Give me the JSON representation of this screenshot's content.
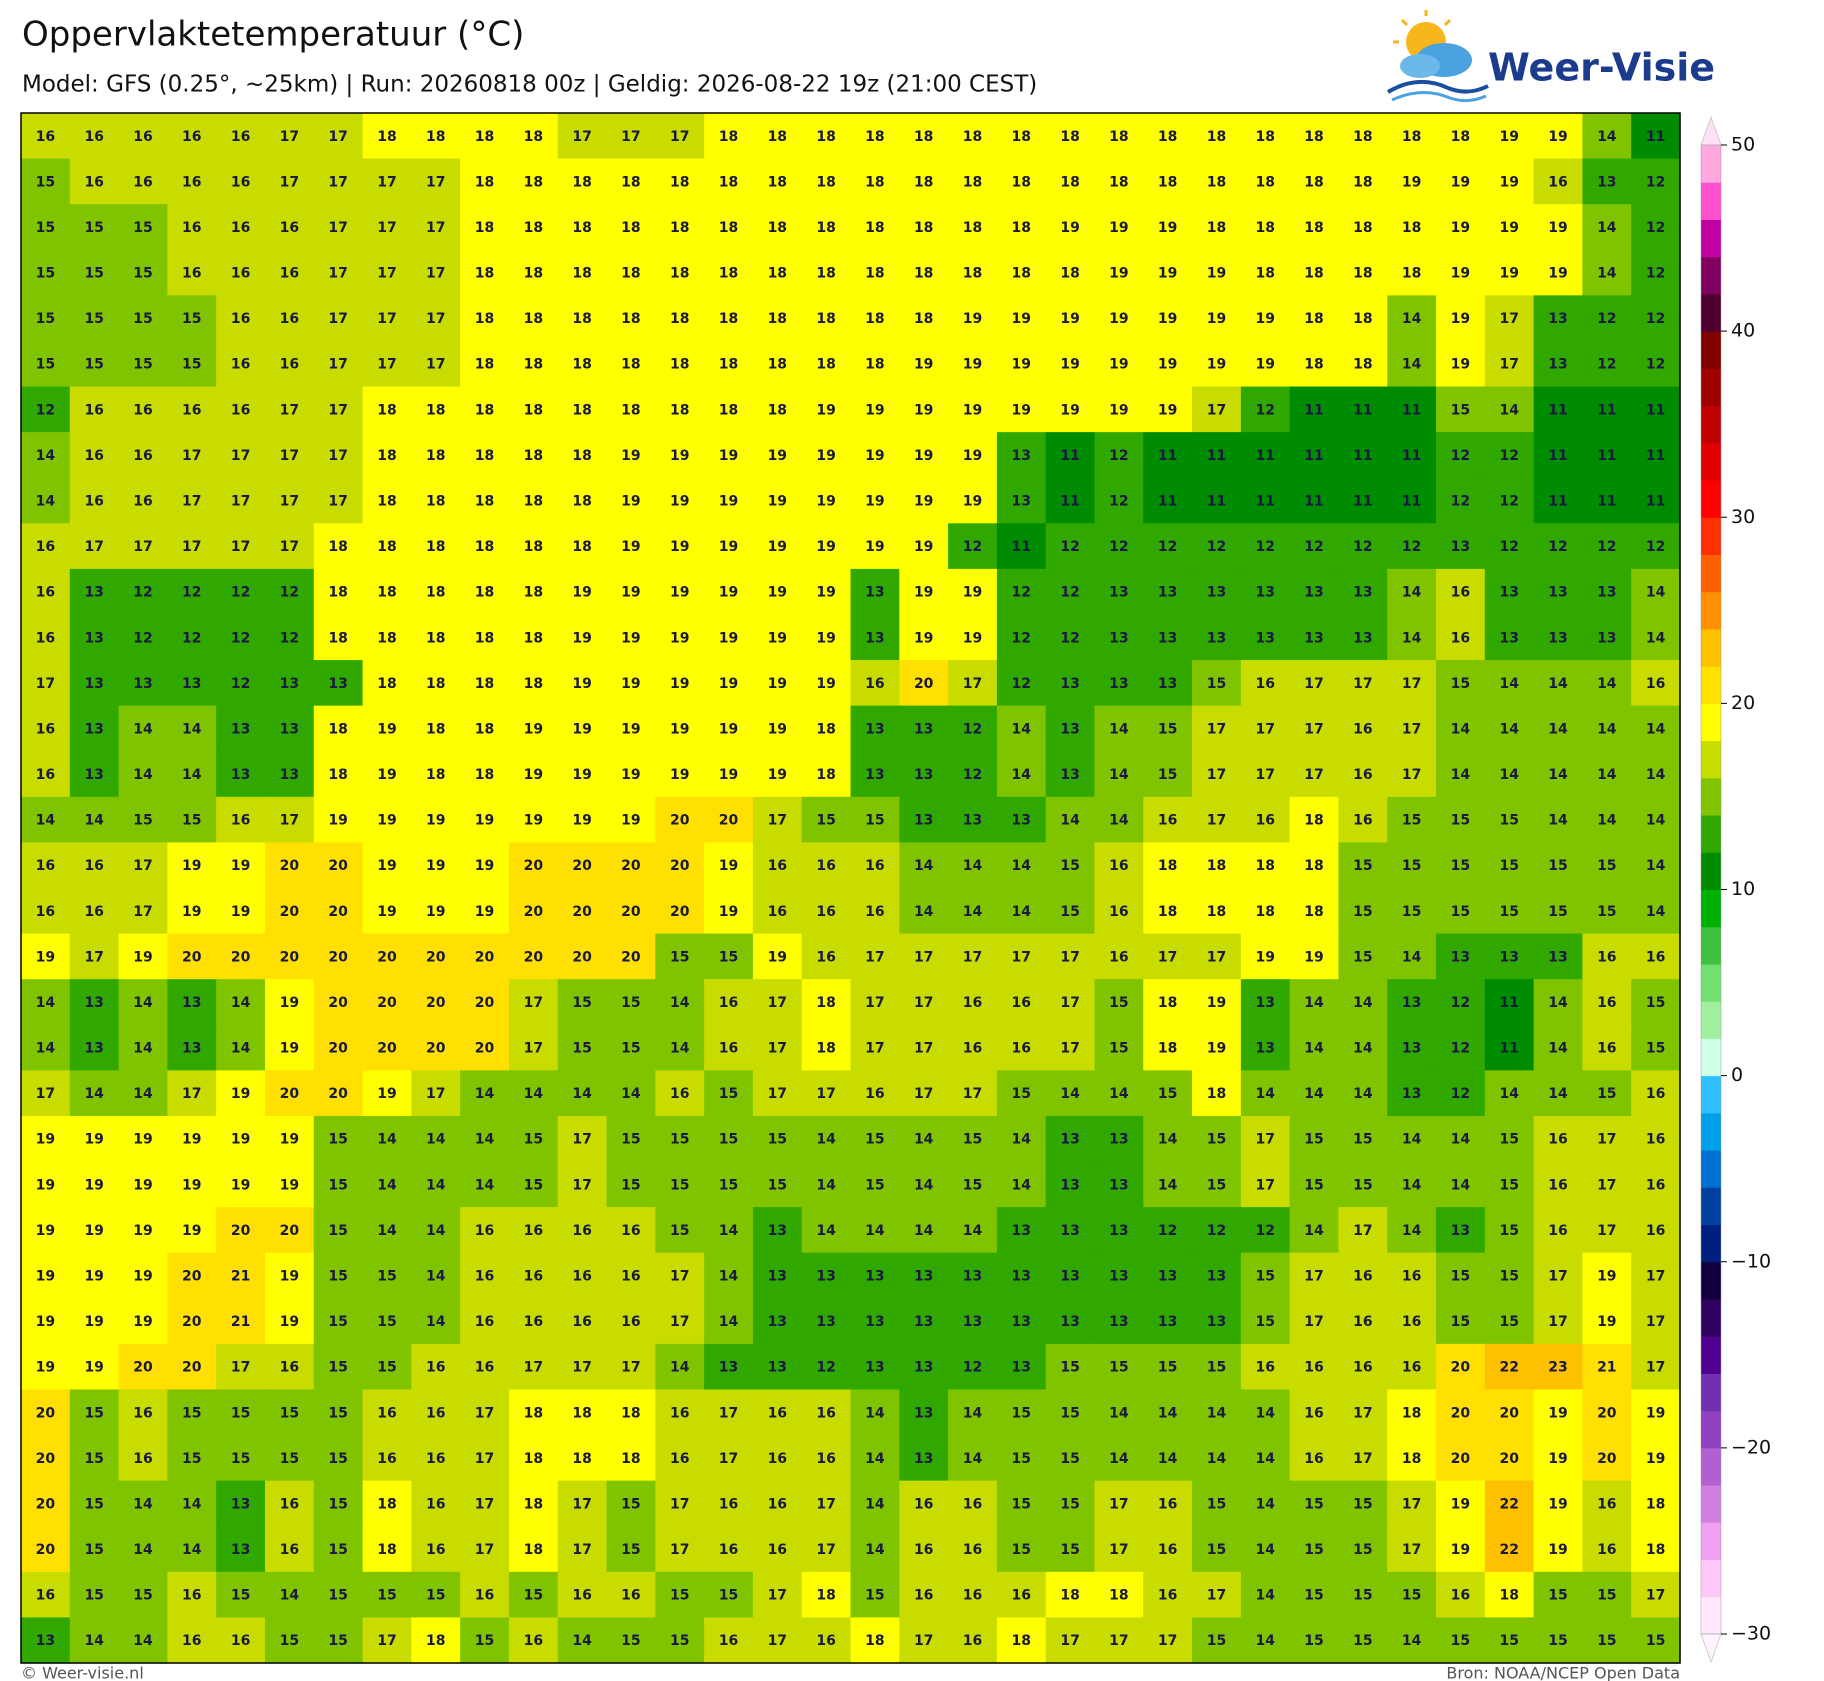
{
  "header": {
    "title": "Oppervlaktetemperatuur (°C)",
    "subtitle": "Model: GFS (0.25°, ~25km)  |  Run: 20260818 00z  |  Geldig: 2026-08-22 19z (21:00 CEST)",
    "logo": "Weer-Visie"
  },
  "map": {
    "values": [
      [
        16,
        16,
        16,
        16,
        16,
        17,
        17,
        18,
        18,
        18,
        18,
        17,
        17,
        17,
        18,
        18,
        18,
        18,
        18,
        18,
        18,
        18,
        18,
        18,
        18,
        18,
        18,
        18,
        18,
        18,
        19,
        19,
        14,
        11
      ],
      [
        15,
        16,
        16,
        16,
        16,
        17,
        17,
        17,
        17,
        18,
        18,
        18,
        18,
        18,
        18,
        18,
        18,
        18,
        18,
        18,
        18,
        18,
        18,
        18,
        18,
        18,
        18,
        18,
        19,
        19,
        19,
        16,
        13,
        12
      ],
      [
        15,
        15,
        15,
        16,
        16,
        16,
        17,
        17,
        17,
        18,
        18,
        18,
        18,
        18,
        18,
        18,
        18,
        18,
        18,
        18,
        18,
        19,
        19,
        19,
        18,
        18,
        18,
        18,
        18,
        19,
        19,
        19,
        14,
        12
      ],
      [
        15,
        15,
        15,
        16,
        16,
        16,
        17,
        17,
        17,
        18,
        18,
        18,
        18,
        18,
        18,
        18,
        18,
        18,
        18,
        18,
        18,
        18,
        19,
        19,
        19,
        18,
        18,
        18,
        18,
        19,
        19,
        19,
        14,
        12
      ],
      [
        15,
        15,
        15,
        15,
        16,
        16,
        17,
        17,
        17,
        18,
        18,
        18,
        18,
        18,
        18,
        18,
        18,
        18,
        18,
        19,
        19,
        19,
        19,
        19,
        19,
        19,
        18,
        18,
        14,
        19,
        17,
        13,
        12,
        12
      ],
      [
        15,
        15,
        15,
        15,
        16,
        16,
        17,
        17,
        17,
        18,
        18,
        18,
        18,
        18,
        18,
        18,
        18,
        18,
        19,
        19,
        19,
        19,
        19,
        19,
        19,
        19,
        18,
        18,
        14,
        19,
        17,
        13,
        12,
        12
      ],
      [
        12,
        16,
        16,
        16,
        16,
        17,
        17,
        18,
        18,
        18,
        18,
        18,
        18,
        18,
        18,
        18,
        19,
        19,
        19,
        19,
        19,
        19,
        19,
        19,
        17,
        12,
        11,
        11,
        11,
        15,
        14,
        11,
        11,
        11
      ],
      [
        14,
        16,
        16,
        17,
        17,
        17,
        17,
        18,
        18,
        18,
        18,
        18,
        19,
        19,
        19,
        19,
        19,
        19,
        19,
        19,
        13,
        11,
        12,
        11,
        11,
        11,
        11,
        11,
        11,
        12,
        12,
        11,
        11,
        11
      ],
      [
        14,
        16,
        16,
        17,
        17,
        17,
        17,
        18,
        18,
        18,
        18,
        18,
        19,
        19,
        19,
        19,
        19,
        19,
        19,
        19,
        13,
        11,
        12,
        11,
        11,
        11,
        11,
        11,
        11,
        12,
        12,
        11,
        11,
        11
      ],
      [
        16,
        17,
        17,
        17,
        17,
        17,
        18,
        18,
        18,
        18,
        18,
        18,
        19,
        19,
        19,
        19,
        19,
        19,
        19,
        12,
        11,
        12,
        12,
        12,
        12,
        12,
        12,
        12,
        12,
        13,
        12,
        12,
        12,
        12
      ],
      [
        16,
        13,
        12,
        12,
        12,
        12,
        18,
        18,
        18,
        18,
        18,
        19,
        19,
        19,
        19,
        19,
        19,
        13,
        19,
        19,
        12,
        12,
        13,
        13,
        13,
        13,
        13,
        13,
        14,
        16,
        13,
        13,
        13,
        14
      ],
      [
        16,
        13,
        12,
        12,
        12,
        12,
        18,
        18,
        18,
        18,
        18,
        19,
        19,
        19,
        19,
        19,
        19,
        13,
        19,
        19,
        12,
        12,
        13,
        13,
        13,
        13,
        13,
        13,
        14,
        16,
        13,
        13,
        13,
        14
      ],
      [
        17,
        13,
        13,
        13,
        12,
        13,
        13,
        18,
        18,
        18,
        18,
        19,
        19,
        19,
        19,
        19,
        19,
        16,
        20,
        17,
        12,
        13,
        13,
        13,
        15,
        16,
        17,
        17,
        17,
        15,
        14,
        14,
        14,
        16
      ],
      [
        16,
        13,
        14,
        14,
        13,
        13,
        18,
        19,
        18,
        18,
        19,
        19,
        19,
        19,
        19,
        19,
        18,
        13,
        13,
        12,
        14,
        13,
        14,
        15,
        17,
        17,
        17,
        16,
        17,
        14,
        14,
        14,
        14,
        14
      ],
      [
        16,
        13,
        14,
        14,
        13,
        13,
        18,
        19,
        18,
        18,
        19,
        19,
        19,
        19,
        19,
        19,
        18,
        13,
        13,
        12,
        14,
        13,
        14,
        15,
        17,
        17,
        17,
        16,
        17,
        14,
        14,
        14,
        14,
        14
      ],
      [
        14,
        14,
        15,
        15,
        16,
        17,
        19,
        19,
        19,
        19,
        19,
        19,
        19,
        20,
        20,
        17,
        15,
        15,
        13,
        13,
        13,
        14,
        14,
        16,
        17,
        16,
        18,
        16,
        15,
        15,
        15,
        14,
        14,
        14
      ],
      [
        16,
        16,
        17,
        19,
        19,
        20,
        20,
        19,
        19,
        19,
        20,
        20,
        20,
        20,
        19,
        16,
        16,
        16,
        14,
        14,
        14,
        15,
        16,
        18,
        18,
        18,
        18,
        15,
        15,
        15,
        15,
        15,
        15,
        14
      ],
      [
        16,
        16,
        17,
        19,
        19,
        20,
        20,
        19,
        19,
        19,
        20,
        20,
        20,
        20,
        19,
        16,
        16,
        16,
        14,
        14,
        14,
        15,
        16,
        18,
        18,
        18,
        18,
        15,
        15,
        15,
        15,
        15,
        15,
        14
      ],
      [
        19,
        17,
        19,
        20,
        20,
        20,
        20,
        20,
        20,
        20,
        20,
        20,
        20,
        15,
        15,
        19,
        16,
        17,
        17,
        17,
        17,
        17,
        16,
        17,
        17,
        19,
        19,
        15,
        14,
        13,
        13,
        13,
        16,
        16
      ],
      [
        14,
        13,
        14,
        13,
        14,
        19,
        20,
        20,
        20,
        20,
        17,
        15,
        15,
        14,
        16,
        17,
        18,
        17,
        17,
        16,
        16,
        17,
        15,
        18,
        19,
        13,
        14,
        14,
        13,
        12,
        11,
        14,
        16,
        15
      ],
      [
        14,
        13,
        14,
        13,
        14,
        19,
        20,
        20,
        20,
        20,
        17,
        15,
        15,
        14,
        16,
        17,
        18,
        17,
        17,
        16,
        16,
        17,
        15,
        18,
        19,
        13,
        14,
        14,
        13,
        12,
        11,
        14,
        16,
        15
      ],
      [
        17,
        14,
        14,
        17,
        19,
        20,
        20,
        19,
        17,
        14,
        14,
        14,
        14,
        16,
        15,
        17,
        17,
        16,
        17,
        17,
        15,
        14,
        14,
        15,
        18,
        14,
        14,
        14,
        13,
        12,
        14,
        14,
        15,
        16
      ],
      [
        19,
        19,
        19,
        19,
        19,
        19,
        15,
        14,
        14,
        14,
        15,
        17,
        15,
        15,
        15,
        15,
        14,
        15,
        14,
        15,
        14,
        13,
        13,
        14,
        15,
        17,
        15,
        15,
        14,
        14,
        15,
        16,
        17,
        16
      ],
      [
        19,
        19,
        19,
        19,
        19,
        19,
        15,
        14,
        14,
        14,
        15,
        17,
        15,
        15,
        15,
        15,
        14,
        15,
        14,
        15,
        14,
        13,
        13,
        14,
        15,
        17,
        15,
        15,
        14,
        14,
        15,
        16,
        17,
        16
      ],
      [
        19,
        19,
        19,
        19,
        20,
        20,
        15,
        14,
        14,
        16,
        16,
        16,
        16,
        15,
        14,
        13,
        14,
        14,
        14,
        14,
        13,
        13,
        13,
        12,
        12,
        12,
        14,
        17,
        14,
        13,
        15,
        16,
        17,
        16
      ],
      [
        19,
        19,
        19,
        20,
        21,
        19,
        15,
        15,
        14,
        16,
        16,
        16,
        16,
        17,
        14,
        13,
        13,
        13,
        13,
        13,
        13,
        13,
        13,
        13,
        13,
        15,
        17,
        16,
        16,
        15,
        15,
        17,
        19,
        17
      ],
      [
        19,
        19,
        19,
        20,
        21,
        19,
        15,
        15,
        14,
        16,
        16,
        16,
        16,
        17,
        14,
        13,
        13,
        13,
        13,
        13,
        13,
        13,
        13,
        13,
        13,
        15,
        17,
        16,
        16,
        15,
        15,
        17,
        19,
        17
      ],
      [
        19,
        19,
        20,
        20,
        17,
        16,
        15,
        15,
        16,
        16,
        17,
        17,
        17,
        14,
        13,
        13,
        12,
        13,
        13,
        12,
        13,
        15,
        15,
        15,
        15,
        16,
        16,
        16,
        16,
        20,
        22,
        23,
        21,
        17
      ],
      [
        20,
        15,
        16,
        15,
        15,
        15,
        15,
        16,
        16,
        17,
        18,
        18,
        18,
        16,
        17,
        16,
        16,
        14,
        13,
        14,
        15,
        15,
        14,
        14,
        14,
        14,
        16,
        17,
        18,
        20,
        20,
        19,
        20,
        19
      ],
      [
        20,
        15,
        16,
        15,
        15,
        15,
        15,
        16,
        16,
        17,
        18,
        18,
        18,
        16,
        17,
        16,
        16,
        14,
        13,
        14,
        15,
        15,
        14,
        14,
        14,
        14,
        16,
        17,
        18,
        20,
        20,
        19,
        20,
        19
      ],
      [
        20,
        15,
        14,
        14,
        13,
        16,
        15,
        18,
        16,
        17,
        18,
        17,
        15,
        17,
        16,
        16,
        17,
        14,
        16,
        16,
        15,
        15,
        17,
        16,
        15,
        14,
        15,
        15,
        17,
        19,
        22,
        19,
        16,
        18
      ],
      [
        20,
        15,
        14,
        14,
        13,
        16,
        15,
        18,
        16,
        17,
        18,
        17,
        15,
        17,
        16,
        16,
        17,
        14,
        16,
        16,
        15,
        15,
        17,
        16,
        15,
        14,
        15,
        15,
        17,
        19,
        22,
        19,
        16,
        18
      ],
      [
        16,
        15,
        15,
        16,
        15,
        14,
        15,
        15,
        15,
        16,
        15,
        16,
        16,
        15,
        15,
        17,
        18,
        15,
        16,
        16,
        16,
        18,
        18,
        16,
        17,
        14,
        15,
        15,
        15,
        16,
        18,
        15,
        15,
        17
      ],
      [
        13,
        14,
        14,
        16,
        16,
        15,
        15,
        17,
        18,
        15,
        16,
        14,
        15,
        15,
        16,
        17,
        16,
        18,
        17,
        16,
        18,
        17,
        17,
        17,
        15,
        14,
        15,
        15,
        14,
        15,
        15,
        15,
        15,
        15
      ]
    ]
  },
  "colorbar": {
    "lim": [
      -30,
      50
    ],
    "colors": [
      "#ffe8fc",
      "#ffc8f8",
      "#f0a0f0",
      "#d080e0",
      "#b060d0",
      "#9040c0",
      "#7030b0",
      "#500090",
      "#300060",
      "#100040",
      "#002080",
      "#0040a0",
      "#0070d0",
      "#00a0e8",
      "#30c0ff",
      "#d0ffe8",
      "#a0f0a0",
      "#70e070",
      "#40c040",
      "#00b000",
      "#008c00",
      "#30a800",
      "#80c400",
      "#c8dc00",
      "#ffff00",
      "#ffe000",
      "#ffc000",
      "#ff9000",
      "#ff6000",
      "#ff3000",
      "#ff0000",
      "#e00000",
      "#c00000",
      "#a00000",
      "#800000",
      "#500030",
      "#800060",
      "#c000a0",
      "#ff50d0",
      "#ffa8e0"
    ],
    "above_color": "#ffe0f5",
    "below_color": "#fff4fd",
    "ticks": [
      50,
      40,
      30,
      20,
      10,
      0,
      {
        "value": -10,
        "label": "−10"
      },
      {
        "value": -20,
        "label": "−20"
      },
      {
        "value": -30,
        "label": "−30"
      }
    ]
  },
  "footer": {
    "left": "© Weer-visie.nl",
    "right": "Bron: NOAA/NCEP Open Data"
  }
}
